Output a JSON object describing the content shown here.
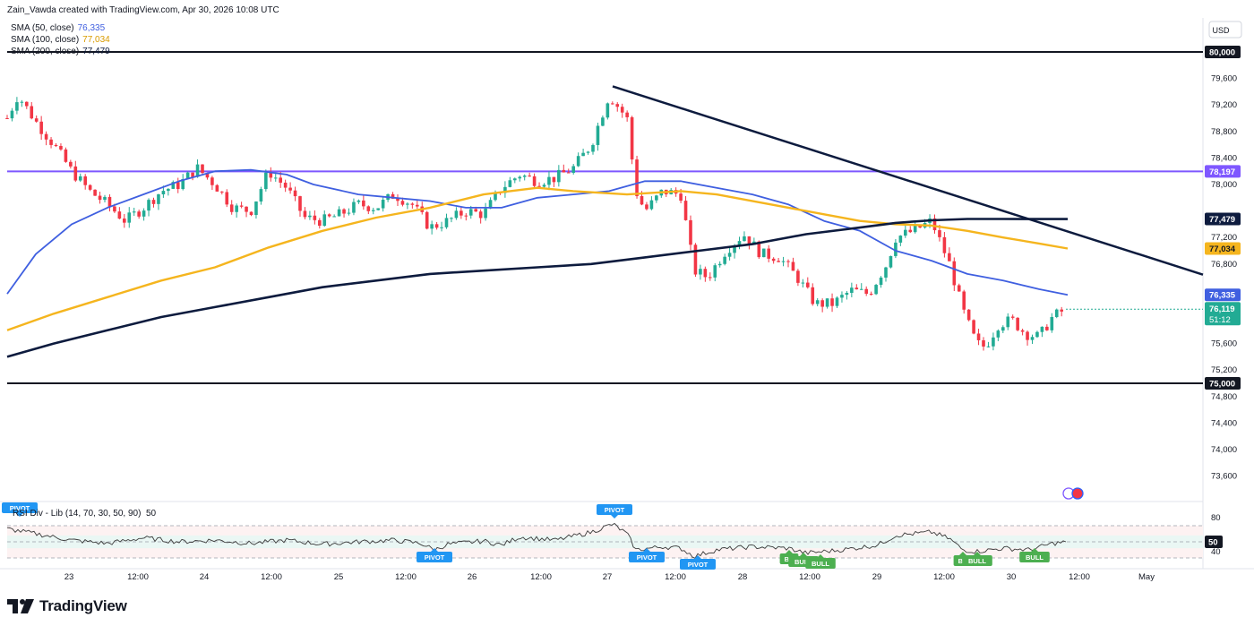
{
  "header": {
    "credit": "Zain_Vawda created with TradingView.com, Apr 30, 2026 10:08 UTC",
    "legend": [
      {
        "name": "SMA (50, close)",
        "value": "76,335",
        "color": "#3f5fe0"
      },
      {
        "name": "SMA (100, close)",
        "value": "77,034",
        "color": "#f5b51e"
      },
      {
        "name": "SMA (200, close)",
        "value": "77,479",
        "color": "#0d1b3e"
      }
    ]
  },
  "brand": {
    "name": "TradingView"
  },
  "chart_data": {
    "type": "candlestick",
    "currency": "USD",
    "y_ticks": [
      "79,600",
      "79,200",
      "78,800",
      "78,400",
      "78,000",
      "77,200",
      "76,800",
      "75,600",
      "75,200",
      "74,800",
      "74,400",
      "74,000",
      "73,600"
    ],
    "ylim": [
      73400,
      80250
    ],
    "x_ticks": [
      "23",
      "12:00",
      "24",
      "12:00",
      "25",
      "12:00",
      "26",
      "12:00",
      "27",
      "12:00",
      "28",
      "12:00",
      "29",
      "12:00",
      "30",
      "12:00",
      "May"
    ],
    "last_price": "76,119",
    "countdown": "51:12",
    "horizontal_levels": [
      {
        "label": "80,000",
        "value": 80000,
        "color": "#131722"
      },
      {
        "label": "78,197",
        "value": 78197,
        "color": "#7e57ff"
      },
      {
        "label": "75,000",
        "value": 75000,
        "color": "#131722"
      }
    ],
    "trendline": {
      "from": {
        "bar": 0.05,
        "value": 79480
      },
      "to": {
        "bar": 1.0,
        "value": 76640
      },
      "color": "#0d1b3e"
    },
    "series": [
      {
        "name": "SMA (50, close)",
        "color": "#3f5fe0",
        "last": "76,335"
      },
      {
        "name": "SMA (100, close)",
        "color": "#f5b51e",
        "last": "77,034"
      },
      {
        "name": "SMA (200, close)",
        "color": "#0d1b3e",
        "last": "77,479"
      }
    ],
    "rsi": {
      "label": "RSI Div - Lib (14, 70, 30, 50, 90)",
      "level": "50",
      "ticks": [
        "80",
        "40"
      ],
      "current": "50",
      "pivot_label": "PIVOT",
      "bull_label": "BULL",
      "bull_short_label": "BU"
    }
  }
}
